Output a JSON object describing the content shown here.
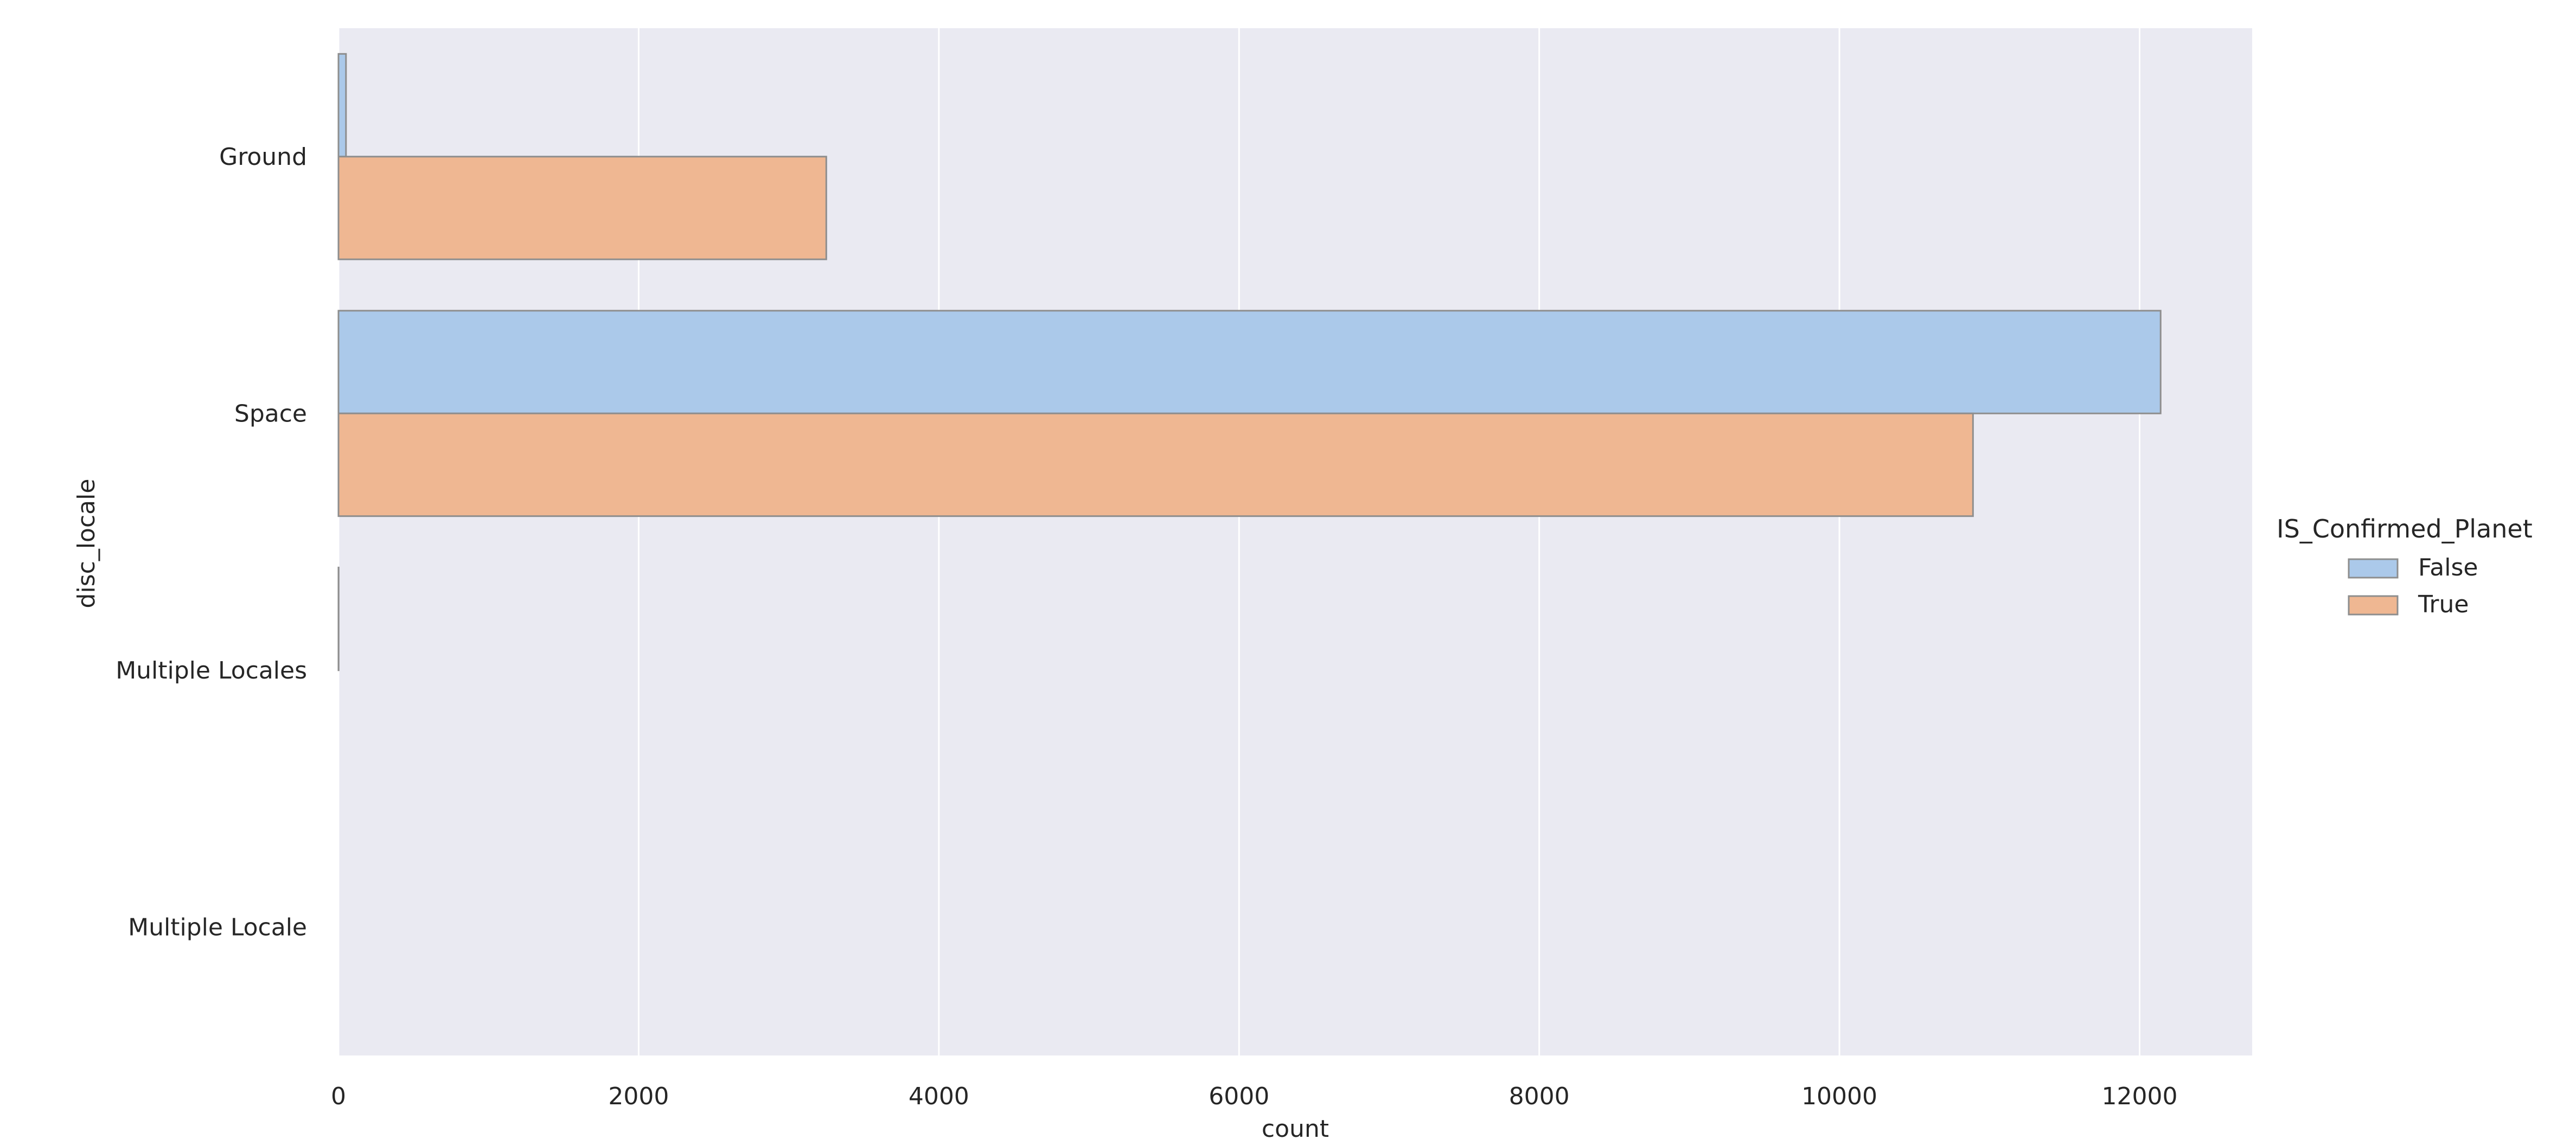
{
  "chart_data": {
    "type": "bar",
    "orientation": "horizontal",
    "title": "",
    "xlabel": "count",
    "ylabel": "disc_locale",
    "categories": [
      "Ground",
      "Space",
      "Multiple Locales",
      "Multiple Locale"
    ],
    "series": [
      {
        "name": "False",
        "color": "#abc9ea",
        "values": [
          50,
          12140,
          1,
          0
        ]
      },
      {
        "name": "True",
        "color": "#efb792",
        "values": [
          3250,
          10890,
          0,
          0
        ]
      }
    ],
    "xlim": [
      0,
      12750
    ],
    "xticks": [
      0,
      2000,
      4000,
      6000,
      8000,
      10000,
      12000
    ],
    "grid": true,
    "background": "#eaeaf2",
    "legend": {
      "title": "IS_Confirmed_Planet",
      "placement": "right"
    }
  }
}
